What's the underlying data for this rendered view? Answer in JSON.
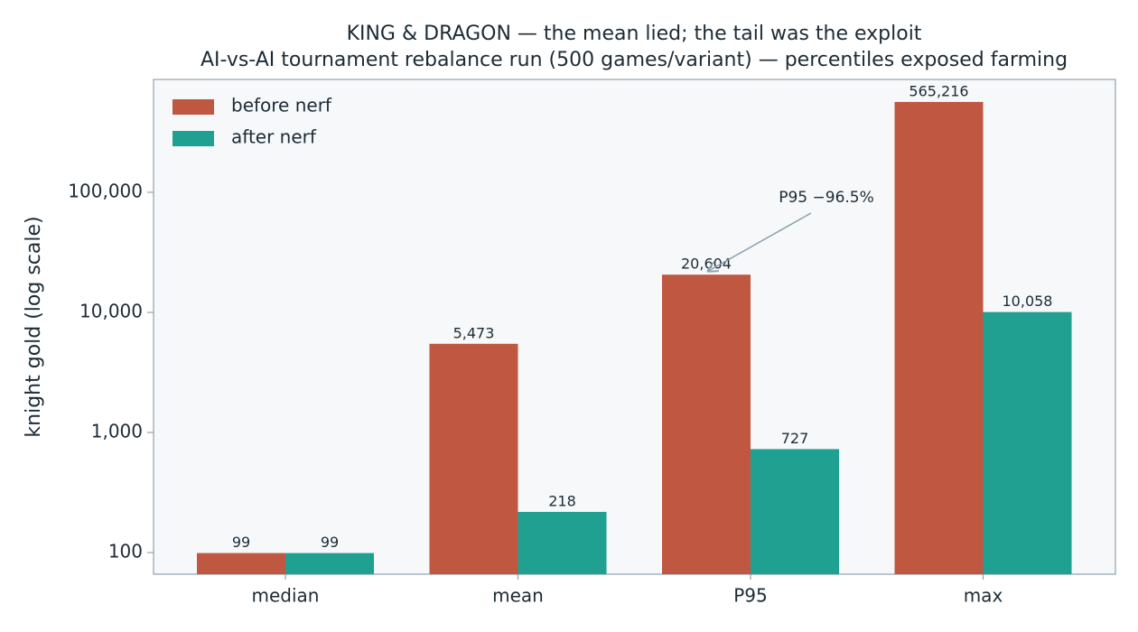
{
  "chart_data": {
    "type": "bar",
    "title": "KING & DRAGON — the mean lied; the tail was the exploit",
    "subtitle": "AI-vs-AI tournament rebalance run (500 games/variant) — percentiles exposed farming",
    "y_label": "knight gold (log scale)",
    "log_scale": true,
    "legend_position": "upper left",
    "categories": [
      "median",
      "mean",
      "P95",
      "max"
    ],
    "series": [
      {
        "name": "before nerf",
        "color": "#bf5741",
        "values": [
          99,
          5473,
          20604,
          565216
        ],
        "value_labels": [
          "99",
          "5,473",
          "20,604",
          "565,216"
        ]
      },
      {
        "name": "after nerf",
        "color": "#20a090",
        "values": [
          99,
          218,
          727,
          10058
        ],
        "value_labels": [
          "99",
          "218",
          "727",
          "10,058"
        ]
      }
    ],
    "ylim": [
      66,
      870000
    ],
    "yticks": [
      100,
      {
        "value": 1000,
        "label": "1,000"
      },
      {
        "value": 10000,
        "label": "10,000"
      },
      {
        "value": 100000,
        "label": "100,000"
      }
    ],
    "annotation": "P95 −96.5%"
  }
}
